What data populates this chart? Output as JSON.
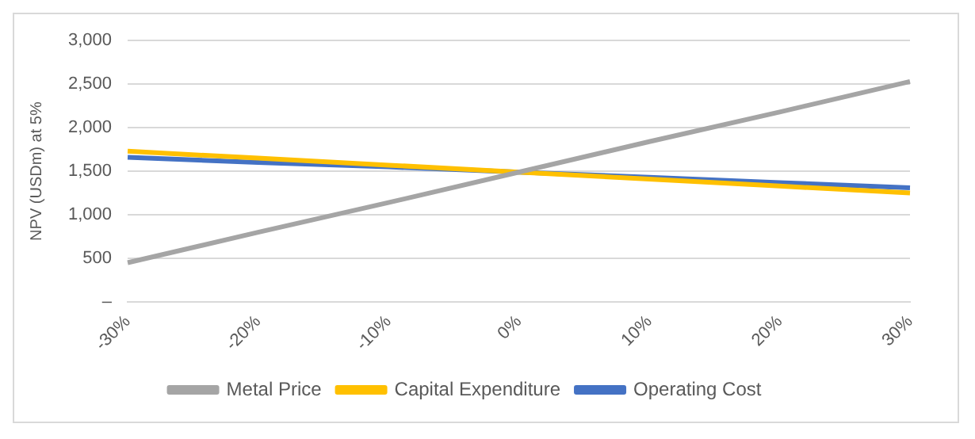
{
  "chart_data": {
    "type": "line",
    "ylabel": "NPV (USDm) at 5%",
    "categories": [
      "-30%",
      "-20%",
      "-10%",
      "0%",
      "10%",
      "20%",
      "30%"
    ],
    "series": [
      {
        "name": "Metal Price",
        "color": "#a5a5a5",
        "values": [
          450,
          800,
          1140,
          1490,
          1840,
          2180,
          2530
        ]
      },
      {
        "name": "Capital Expenditure",
        "color": "#ffc000",
        "values": [
          1730,
          1650,
          1570,
          1490,
          1410,
          1330,
          1250
        ]
      },
      {
        "name": "Operating Cost",
        "color": "#4472c4",
        "values": [
          1660,
          1600,
          1550,
          1490,
          1430,
          1370,
          1310
        ]
      }
    ],
    "ylim": [
      0,
      3000
    ],
    "yticks": [
      {
        "value": 0,
        "label": "–"
      },
      {
        "value": 500,
        "label": "500"
      },
      {
        "value": 1000,
        "label": "1,000"
      },
      {
        "value": 1500,
        "label": "1,500"
      },
      {
        "value": 2000,
        "label": "2,000"
      },
      {
        "value": 2500,
        "label": "2,500"
      },
      {
        "value": 3000,
        "label": "3,000"
      }
    ],
    "grid": "y",
    "legend": "bottom",
    "marker": "none",
    "line_style": "solid"
  }
}
